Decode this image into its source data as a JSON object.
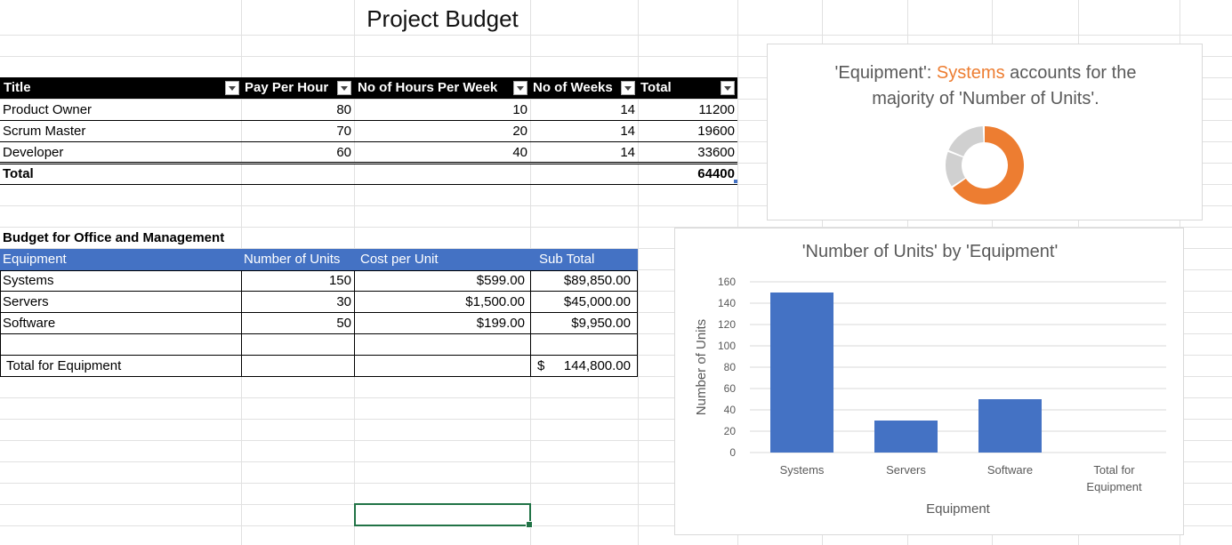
{
  "sheet_title": "Project Budget",
  "table1": {
    "headers": [
      "Title",
      "Pay Per Hour",
      "No of Hours Per Week",
      "No of Weeks",
      "Total"
    ],
    "rows": [
      [
        "Product Owner",
        "80",
        "10",
        "14",
        "11200"
      ],
      [
        "Scrum Master",
        "70",
        "20",
        "14",
        "19600"
      ],
      [
        "Developer",
        "60",
        "40",
        "14",
        "33600"
      ]
    ],
    "total_label": "Total",
    "total_value": "64400"
  },
  "table2": {
    "caption": "Budget for Office and Management",
    "headers": [
      "Equipment",
      "Number of Units",
      "Cost per Unit",
      "Sub Total"
    ],
    "rows": [
      [
        "Systems",
        "150",
        "$599.00",
        "$89,850.00"
      ],
      [
        "Servers",
        "30",
        "$1,500.00",
        "$45,000.00"
      ],
      [
        "Software",
        "50",
        "$199.00",
        "$9,950.00"
      ]
    ],
    "total_label": "Total for Equipment",
    "total_currency": "$",
    "total_value": "144,800.00"
  },
  "insight_card": {
    "prefix": "'Equipment': ",
    "highlight": "Systems",
    "suffix_line1": " accounts for the",
    "line2": "majority of 'Number of Units'.",
    "highlight_color": "#ed7d31",
    "donut_share": 0.652,
    "donut_rest_color": "#d0d0d0"
  },
  "chart_data": {
    "type": "bar",
    "title": "'Number of Units' by 'Equipment'",
    "categories": [
      "Systems",
      "Servers",
      "Software",
      "Total for Equipment"
    ],
    "values": [
      150,
      30,
      50,
      0
    ],
    "xlabel": "Equipment",
    "ylabel": "Number of Units",
    "ylim": [
      0,
      160
    ],
    "yticks": [
      0,
      20,
      40,
      60,
      80,
      100,
      120,
      140,
      160
    ],
    "bar_color": "#4472c4",
    "grid": true
  }
}
